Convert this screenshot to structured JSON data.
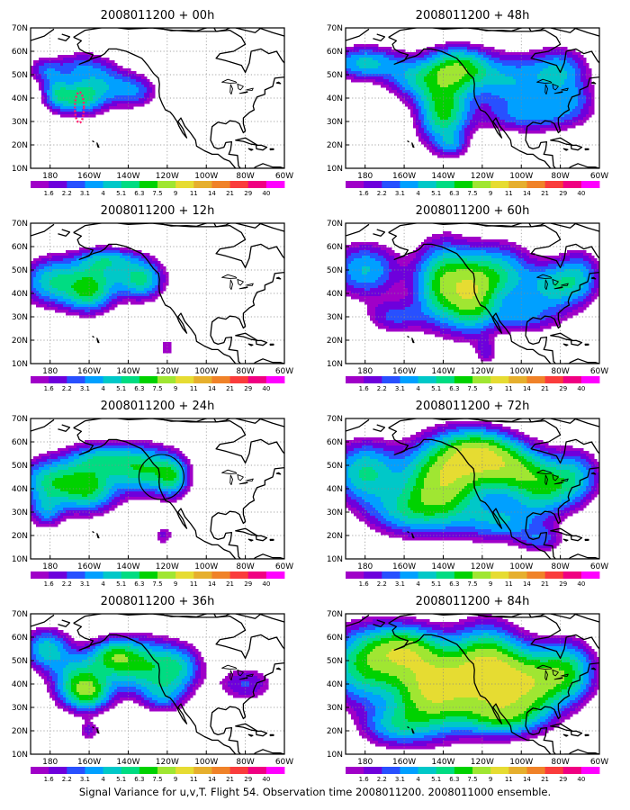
{
  "panels": [
    {
      "title": "2008011200 + 00h"
    },
    {
      "title": "2008011200 + 48h"
    },
    {
      "title": "2008011200 + 12h"
    },
    {
      "title": "2008011200 + 60h"
    },
    {
      "title": "2008011200 + 24h"
    },
    {
      "title": "2008011200 + 72h"
    },
    {
      "title": "2008011200 + 36h"
    },
    {
      "title": "2008011200 + 84h"
    }
  ],
  "axes": {
    "lat_labels": [
      "70N",
      "60N",
      "50N",
      "40N",
      "30N",
      "20N",
      "10N"
    ],
    "lon_labels": [
      "180",
      "160W",
      "140W",
      "120W",
      "100W",
      "80W",
      "60W"
    ],
    "lat_range": [
      10,
      70
    ],
    "lon_range": [
      -190,
      -60
    ],
    "grid": "dotted"
  },
  "colorbar": {
    "labels": [
      "1.6",
      "2.2",
      "3.1",
      "4",
      "5.1",
      "6.3",
      "7.5",
      "9",
      "11",
      "14",
      "21",
      "29",
      "40"
    ],
    "colors": [
      "#a000c8",
      "#6e00dc",
      "#2850ff",
      "#00a0ff",
      "#00c8c8",
      "#00dc82",
      "#00d200",
      "#a0e632",
      "#e6dc32",
      "#e6af2d",
      "#f08228",
      "#fa3c3c",
      "#f00082",
      "#ff00ff"
    ]
  },
  "caption": "Signal Variance for u,v,T. Flight 54. Observation time 2008011200. 2008011000 ensemble."
}
